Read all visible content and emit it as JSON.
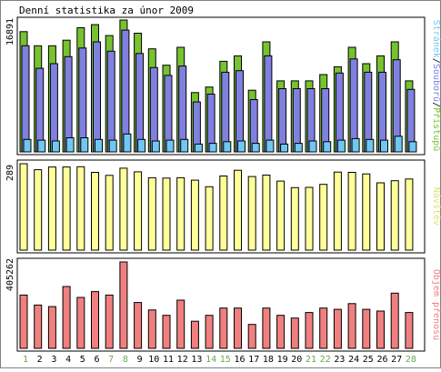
{
  "title": "Denní statistika za únor 2009",
  "day_labels": [
    "1",
    "2",
    "3",
    "4",
    "5",
    "6",
    "7",
    "8",
    "9",
    "10",
    "11",
    "12",
    "13",
    "14",
    "15",
    "16",
    "17",
    "18",
    "19",
    "20",
    "21",
    "22",
    "23",
    "24",
    "25",
    "26",
    "27",
    "28"
  ],
  "weekend_days": [
    "1",
    "7",
    "8",
    "14",
    "15",
    "21",
    "22",
    "28"
  ],
  "colors": {
    "background": "#ffffff",
    "border": "#000000",
    "hits": "#77c230",
    "files": "#8080e0",
    "pages": "#70c8f0",
    "visits": "#ffff99",
    "kbytes": "#f08080",
    "weekday_label": "#000000",
    "weekend_label": "#6aa84f"
  },
  "chart_data": [
    {
      "type": "bar",
      "name": "requests-panel",
      "ylabel_max": "16891",
      "right_label": {
        "hits": "Přístupů",
        "sep1": "/",
        "files": "Souborů",
        "sep2": "/",
        "pages": "Stránek"
      },
      "ylim": [
        0,
        16891
      ],
      "categories": [
        "1",
        "2",
        "3",
        "4",
        "5",
        "6",
        "7",
        "8",
        "9",
        "10",
        "11",
        "12",
        "13",
        "14",
        "15",
        "16",
        "17",
        "18",
        "19",
        "20",
        "21",
        "22",
        "23",
        "24",
        "25",
        "26",
        "27",
        "28"
      ],
      "series": [
        {
          "name": "Přístupů",
          "values": [
            15400,
            13600,
            13600,
            14300,
            15900,
            16300,
            14900,
            16891,
            15200,
            13200,
            11100,
            13400,
            7600,
            8300,
            11600,
            12300,
            7900,
            14100,
            9100,
            9100,
            9100,
            9900,
            10900,
            13400,
            11300,
            12300,
            14100,
            9100
          ]
        },
        {
          "name": "Souborů",
          "values": [
            13600,
            10700,
            11300,
            12200,
            13300,
            14100,
            12900,
            15600,
            12600,
            10800,
            9800,
            11000,
            6400,
            7400,
            10200,
            10400,
            6700,
            12300,
            8100,
            8100,
            8100,
            8100,
            10100,
            11900,
            10200,
            10200,
            11800,
            8000
          ]
        },
        {
          "name": "Stránek",
          "values": [
            1600,
            1500,
            1400,
            1800,
            1800,
            1600,
            1500,
            2300,
            1600,
            1400,
            1500,
            1600,
            1000,
            1100,
            1300,
            1400,
            1100,
            1500,
            1000,
            1100,
            1400,
            1300,
            1500,
            1700,
            1600,
            1500,
            2000,
            1300
          ]
        }
      ]
    },
    {
      "type": "bar",
      "name": "visits-panel",
      "ylabel_max": "289",
      "right_label": "Návštěv",
      "ylim": [
        0,
        289
      ],
      "categories": [
        "1",
        "2",
        "3",
        "4",
        "5",
        "6",
        "7",
        "8",
        "9",
        "10",
        "11",
        "12",
        "13",
        "14",
        "15",
        "16",
        "17",
        "18",
        "19",
        "20",
        "21",
        "22",
        "23",
        "24",
        "25",
        "26",
        "27",
        "28"
      ],
      "series": [
        {
          "name": "Návštěv",
          "values": [
            289,
            269,
            278,
            278,
            279,
            260,
            250,
            274,
            262,
            242,
            241,
            242,
            234,
            212,
            248,
            267,
            246,
            251,
            231,
            209,
            210,
            220,
            261,
            260,
            255,
            225,
            232,
            238
          ]
        }
      ]
    },
    {
      "type": "bar",
      "name": "kbytes-panel",
      "ylabel_max": "405262",
      "right_label": "Objem přenosu",
      "ylim": [
        0,
        405262
      ],
      "categories": [
        "1",
        "2",
        "3",
        "4",
        "5",
        "6",
        "7",
        "8",
        "9",
        "10",
        "11",
        "12",
        "13",
        "14",
        "15",
        "16",
        "17",
        "18",
        "19",
        "20",
        "21",
        "22",
        "23",
        "24",
        "25",
        "26",
        "27",
        "28"
      ],
      "series": [
        {
          "name": "Objem přenosu",
          "values": [
            250000,
            203000,
            196000,
            290000,
            239000,
            266000,
            250000,
            405262,
            215000,
            180000,
            155000,
            226000,
            127000,
            155000,
            189000,
            189000,
            112000,
            189000,
            155000,
            142000,
            168000,
            189000,
            183000,
            210000,
            183000,
            175000,
            259000,
            168000
          ]
        }
      ]
    }
  ]
}
